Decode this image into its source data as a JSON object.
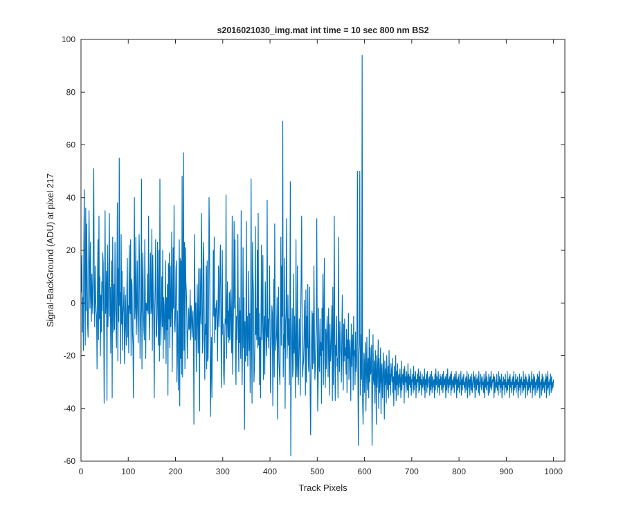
{
  "chart_data": {
    "type": "line",
    "title": "s2016021030_img.mat int time = 10 sec  800 nm BS2",
    "xlabel": "Track Pixels",
    "ylabel": "Signal-BackGround (ADU) at pixel 217",
    "xlim": [
      0,
      1024
    ],
    "ylim": [
      -60,
      100
    ],
    "xticks": [
      0,
      100,
      200,
      300,
      400,
      500,
      600,
      700,
      800,
      900,
      1000
    ],
    "yticks": [
      -60,
      -40,
      -20,
      0,
      20,
      40,
      60,
      80,
      100
    ],
    "grid": false,
    "line_color": "#0072BD",
    "series": [
      {
        "x_start": 1,
        "x_step": 1,
        "values": [
          4,
          18,
          -11,
          2,
          -18,
          22,
          43,
          5,
          -16,
          36,
          -3,
          30,
          12,
          -8,
          -13,
          8,
          35,
          15,
          -2,
          23,
          3,
          -7,
          11,
          1,
          -4,
          28,
          51,
          6,
          -9,
          14,
          2,
          -3,
          -5,
          -25,
          9,
          24,
          -14,
          33,
          -6,
          10,
          -20,
          3,
          -11,
          8,
          -3,
          19,
          15,
          -4,
          -38,
          2,
          35,
          -4,
          1,
          12,
          -37,
          22,
          -9,
          1,
          16,
          34,
          -5,
          6,
          -19,
          -1,
          16,
          -36,
          25,
          3,
          -11,
          7,
          -10,
          23,
          -2,
          -5,
          -17,
          10,
          38,
          -22,
          13,
          -7,
          55,
          -1,
          4,
          -23,
          26,
          -8,
          12,
          -18,
          -4,
          -1,
          6,
          -23,
          -16,
          3,
          -7,
          -16,
          3,
          17,
          -13,
          -1,
          -19,
          22,
          -1,
          -4,
          24,
          -20,
          9,
          7,
          -11,
          -16,
          -36,
          6,
          40,
          -6,
          -1,
          25,
          -12,
          -3,
          16,
          -2,
          -15,
          -4,
          26,
          14,
          -21,
          -9,
          -2,
          47,
          -25,
          5,
          19,
          -2,
          -10,
          -14,
          24,
          5,
          -21,
          0,
          -2,
          -3,
          11,
          -4,
          33,
          -3,
          -14,
          8,
          19,
          -4,
          -1,
          28,
          -18,
          18,
          1,
          -7,
          -36,
          -3,
          7,
          24,
          -13,
          -12,
          -5,
          23,
          -1,
          -16,
          20,
          -22,
          47,
          -6,
          -16,
          -2,
          10,
          -9,
          20,
          -21,
          2,
          -1,
          -14,
          -5,
          16,
          -23,
          2,
          -10,
          7,
          -35,
          15,
          -6,
          19,
          -17,
          14,
          -9,
          -1,
          27,
          -26,
          -4,
          21,
          -2,
          37,
          -8,
          -11,
          -3,
          13,
          16,
          -30,
          -3,
          -16,
          -33,
          -1,
          24,
          -39,
          17,
          -21,
          16,
          -27,
          48,
          -28,
          3,
          57,
          -18,
          23,
          -25,
          21,
          8,
          4,
          -5,
          -21,
          -11,
          -10,
          -2,
          -10,
          -9,
          5,
          -14,
          -1,
          -4,
          -13,
          -7,
          -3,
          -14,
          -46,
          26,
          8,
          -14,
          0,
          -26,
          -8,
          7,
          -8,
          -19,
          13,
          -6,
          -41,
          13,
          -1,
          -8,
          34,
          12,
          -19,
          -14,
          23,
          17,
          -13,
          -29,
          -8,
          -12,
          14,
          -25,
          16,
          -22,
          -21,
          -4,
          40,
          22,
          -5,
          -43,
          -26,
          -13,
          -36,
          -14,
          -3,
          20,
          -5,
          25,
          -15,
          -2,
          -10,
          -1,
          1,
          -6,
          -22,
          -3,
          14,
          -9,
          -3,
          11,
          22,
          -1,
          -32,
          -10,
          20,
          -12,
          -8,
          -27,
          -31,
          -17,
          -6,
          -8,
          41,
          -21,
          -6,
          8,
          -13,
          -3,
          -15,
          4,
          -14,
          -3,
          5,
          -11,
          -19,
          33,
          -27,
          -11,
          2,
          31,
          -2,
          24,
          -17,
          -31,
          -5,
          -14,
          -2,
          26,
          -10,
          -26,
          2,
          -15,
          -3,
          -21,
          35,
          -11,
          -31,
          -12,
          21,
          -17,
          2,
          -48,
          -7,
          -22,
          -11,
          31,
          -20,
          -5,
          -24,
          -12,
          12,
          -18,
          -4,
          -34,
          -15,
          47,
          -13,
          -38,
          23,
          10,
          4,
          -30,
          -25,
          -16,
          29,
          -12,
          -2,
          -14,
          20,
          -17,
          34,
          -16,
          -4,
          -31,
          -13,
          -36,
          -5,
          22,
          -14,
          -3,
          18,
          -29,
          -13,
          -5,
          -27,
          8,
          -7,
          -16,
          -20,
          39,
          -13,
          -6,
          -17,
          -5,
          14,
          -7,
          -34,
          -18,
          -14,
          -1,
          -4,
          -39,
          -12,
          9,
          -28,
          30,
          -8,
          -18,
          -14,
          -11,
          2,
          -44,
          -13,
          6,
          -22,
          -27,
          -31,
          -6,
          25,
          -16,
          14,
          -5,
          69,
          -28,
          -12,
          -17,
          17,
          -40,
          -8,
          -4,
          32,
          -21,
          -14,
          3,
          -16,
          -6,
          -31,
          -9,
          46,
          -58,
          -23,
          -13,
          -2,
          -28,
          -25,
          11,
          -19,
          -5,
          -18,
          -36,
          24,
          -20,
          -28,
          14,
          -23,
          -31,
          -18,
          -6,
          -17,
          -35,
          -4,
          11,
          33,
          -9,
          -28,
          -24,
          -22,
          -15,
          1,
          -12,
          -35,
          5,
          -30,
          -5,
          -17,
          7,
          -22,
          -26,
          -12,
          6,
          -35,
          -50,
          -25,
          -15,
          -3,
          -25,
          -4,
          -23,
          14,
          -13,
          -29,
          -24,
          -14,
          -8,
          32,
          -14,
          -41,
          -30,
          -2,
          -24,
          -26,
          -6,
          -20,
          -15,
          -38,
          -2,
          -18,
          11,
          -31,
          -4,
          17,
          -22,
          -32,
          -10,
          -25,
          -12,
          -5,
          -14,
          -28,
          -2,
          -19,
          -35,
          -8,
          -22,
          -19,
          -11,
          -1,
          -37,
          6,
          -31,
          -23,
          33,
          -10,
          -37,
          -16,
          -20,
          -5,
          -24,
          -21,
          -36,
          25,
          -15,
          -26,
          -7,
          -17,
          -19,
          -30,
          -12,
          3,
          -23,
          -33,
          -8,
          -22,
          -6,
          -20,
          -17,
          -27,
          -10,
          -34,
          -14,
          -21,
          -4,
          -29,
          -19,
          -14,
          -23,
          -37,
          -8,
          -24,
          -16,
          -12,
          -33,
          -5,
          -20,
          -18,
          -31,
          -11,
          -26,
          -24,
          -13,
          50,
          -28,
          -54,
          -20,
          -15,
          50,
          -35,
          -25,
          -12,
          -29,
          94,
          -38,
          -46,
          -26,
          -19,
          -34,
          -22,
          -15,
          -41,
          -27,
          -13,
          -33,
          -24,
          -21,
          -36,
          -10,
          -30,
          -17,
          -27,
          -25,
          -16,
          -54,
          -34,
          -12,
          -29,
          -31,
          -22,
          -38,
          -18,
          -26,
          -46,
          -20,
          -32,
          -24,
          -14,
          -40,
          -21,
          -34,
          -28,
          -17,
          -42,
          -25,
          -23,
          -36,
          -30,
          -19,
          -27,
          -44,
          -22,
          -31,
          -25,
          -38,
          -20,
          -29,
          -33,
          -24,
          -36,
          -18,
          -31,
          -27,
          -35,
          -23,
          -26,
          -30,
          -21,
          -34,
          -28,
          -39,
          -24,
          -29,
          -33,
          -20,
          -37,
          -26,
          -31,
          -23,
          -35,
          -28,
          -27,
          -32,
          -25,
          -30,
          -36,
          -22,
          -33,
          -29,
          -27,
          -31,
          -25,
          -38,
          -24,
          -30,
          -28,
          -34,
          -26,
          -29,
          -33,
          -23,
          -36,
          -27,
          -31,
          -28,
          -32,
          -25,
          -35,
          -29,
          -30,
          -27,
          -34,
          -24,
          -33,
          -28,
          -31,
          -26,
          -36,
          -29,
          -32,
          -27,
          -30,
          -25,
          -34,
          -28,
          -33,
          -26,
          -31,
          -29,
          -35,
          -27,
          -32,
          -30,
          -28,
          -33,
          -25,
          -36,
          -29,
          -31,
          -27,
          -34,
          -26,
          -32,
          -30,
          -29,
          -28,
          -35,
          -27,
          -33,
          -31,
          -26,
          -34,
          -28,
          -32,
          -30,
          -29,
          -36,
          -27,
          -33,
          -25,
          -31,
          -28,
          -34,
          -30,
          -26,
          -32,
          -29,
          -35,
          -27,
          -31,
          -28,
          -33,
          -30,
          -27,
          -34,
          -26,
          -32,
          -29,
          -31,
          -28,
          -36,
          -27,
          -33,
          -30,
          -25,
          -34,
          -29,
          -32,
          -28,
          -31,
          -27,
          -35,
          -26,
          -33,
          -30,
          -29,
          -32,
          -28,
          -34,
          -27,
          -31,
          -30,
          -26,
          -36,
          -29,
          -33,
          -28,
          -32,
          -27,
          -34,
          -30,
          -31,
          -26,
          -35,
          -29,
          -33,
          -28,
          -31,
          -27,
          -32,
          -30,
          -34,
          -29,
          -28,
          -33,
          -26,
          -36,
          -31,
          -27,
          -32,
          -29,
          -35,
          -28,
          -30,
          -33,
          -27,
          -34,
          -31,
          -29,
          -26,
          -32,
          -28,
          -36,
          -30,
          -27,
          -33,
          -29,
          -31,
          -28,
          -34,
          -26,
          -35,
          -30,
          -32,
          -27,
          -29,
          -33,
          -28,
          -31,
          -30,
          -34,
          -27,
          -36,
          -29,
          -32,
          -26,
          -33,
          -28,
          -31,
          -30,
          -35,
          -27,
          -29,
          -34,
          -28,
          -32,
          -26,
          -33,
          -31,
          -29,
          -30,
          -27,
          -36,
          -28,
          -34,
          -31,
          -29,
          -32,
          -27,
          -33,
          -30,
          -35,
          -26,
          -31,
          -28,
          -34,
          -29,
          -32,
          -27,
          -36,
          -30,
          -33,
          -28,
          -31,
          -29,
          -35,
          -27,
          -32,
          -30,
          -34,
          -26,
          -33,
          -29,
          -31,
          -28,
          -36,
          -27,
          -32,
          -30,
          -34,
          -29,
          -31,
          -28,
          -35,
          -26,
          -33,
          -30,
          -32,
          -27,
          -34,
          -29,
          -31,
          -28,
          -36,
          -30,
          -33,
          -27,
          -32,
          -29,
          -35,
          -28,
          -31,
          -30,
          -34,
          -26,
          -33,
          -29,
          -32,
          -27,
          -36,
          -28,
          -31,
          -30,
          -35,
          -29,
          -33,
          -27,
          -32,
          -28,
          -34,
          -30,
          -31,
          -26,
          -36,
          -29,
          -33,
          -27,
          -32,
          -28,
          -35,
          -30,
          -31,
          -29,
          -34,
          -27,
          -33,
          -28,
          -32,
          -26,
          -36,
          -30,
          -31,
          -29,
          -35,
          -27,
          -33,
          -28,
          -32,
          -30,
          -34,
          -29,
          -31,
          -27,
          -36,
          -28,
          -33,
          -26,
          -32,
          -30,
          -35,
          -29,
          -31,
          -27,
          -34,
          -28,
          -33,
          -30,
          -32,
          -29
        ]
      }
    ]
  }
}
